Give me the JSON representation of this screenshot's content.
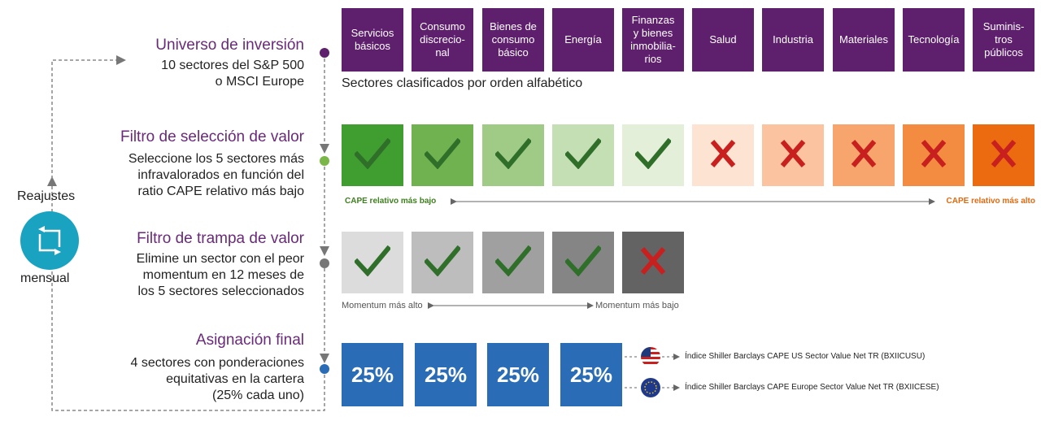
{
  "steps": {
    "universe": {
      "title": "Universo de inversión",
      "line1": "10 sectores del S&P 500",
      "line2": "o MSCI Europe"
    },
    "value_filter": {
      "title": "Filtro de selección de valor",
      "line1": "Seleccione los 5 sectores más",
      "line2": "infravalorados en función del",
      "line3": "ratio CAPE relativo más bajo"
    },
    "trap_filter": {
      "title": "Filtro de trampa de valor",
      "line1": "Elimine un sector con el peor",
      "line2": "momentum en 12 meses de",
      "line3": "los 5 sectores seleccionados"
    },
    "allocation": {
      "title": "Asignación final",
      "line1": "4 sectores con ponderaciones",
      "line2": "equitativas en la cartera",
      "line3": "(25% cada uno)"
    }
  },
  "rebalance": {
    "label_top": "Reajustes",
    "label_bottom": "mensual",
    "icon": "refresh-icon"
  },
  "sectors": [
    {
      "l1": "Servicios",
      "l2": "básicos",
      "l3": "",
      "l4": ""
    },
    {
      "l1": "Consumo",
      "l2": "discrecio-",
      "l3": "nal",
      "l4": ""
    },
    {
      "l1": "Bienes de",
      "l2": "consumo",
      "l3": "básico",
      "l4": ""
    },
    {
      "l1": "Energía",
      "l2": "",
      "l3": "",
      "l4": ""
    },
    {
      "l1": "Finanzas",
      "l2": "y bienes",
      "l3": "inmobilia-",
      "l4": "rios"
    },
    {
      "l1": "Salud",
      "l2": "",
      "l3": "",
      "l4": ""
    },
    {
      "l1": "Industria",
      "l2": "",
      "l3": "",
      "l4": ""
    },
    {
      "l1": "Materiales",
      "l2": "",
      "l3": "",
      "l4": ""
    },
    {
      "l1": "Tecnología",
      "l2": "",
      "l3": "",
      "l4": ""
    },
    {
      "l1": "Suminis-",
      "l2": "tros",
      "l3": "públicos",
      "l4": ""
    }
  ],
  "sectors_caption": "Sectores clasificados por orden alfabético",
  "value_marks": [
    "check",
    "check",
    "check",
    "check",
    "check",
    "cross",
    "cross",
    "cross",
    "cross",
    "cross"
  ],
  "value_colors": [
    "#3f9e2f",
    "#6fb24f",
    "#9fcb86",
    "#c5dfb5",
    "#e3efd9",
    "#fde4d2",
    "#fbc39f",
    "#f8a56d",
    "#f38c41",
    "#ec6a10"
  ],
  "cape_low_label": "CAPE relativo más bajo",
  "cape_high_label": "CAPE relativo más alto",
  "momentum_marks": [
    "check",
    "check",
    "check",
    "check",
    "cross"
  ],
  "momentum_colors": [
    "#dcdcdc",
    "#bdbdbd",
    "#a0a0a0",
    "#858585",
    "#636363"
  ],
  "momentum_high_label": "Momentum más alto",
  "momentum_low_label": "Momentum más bajo",
  "weights": [
    "25%",
    "25%",
    "25%",
    "25%"
  ],
  "indices": {
    "us": "Índice Shiller Barclays CAPE US Sector Value Net TR (BXIICUSU)",
    "eu": "Índice Shiller Barclays CAPE Europe Sector Value Net TR (BXIICESE)"
  },
  "colors": {
    "purple": "#5e1f6c",
    "title_purple": "#6a2a7a",
    "check": "#2f6f2a",
    "cross": "#c8201e",
    "blue": "#2a6db6",
    "teal": "#1aa3c0"
  }
}
